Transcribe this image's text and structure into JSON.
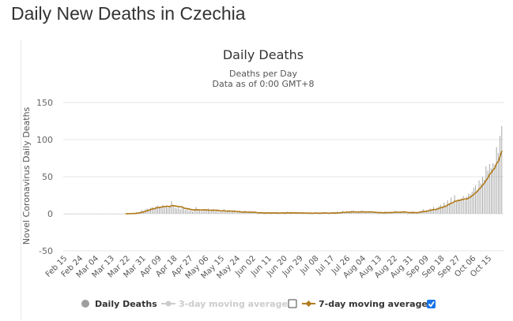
{
  "page": {
    "title": "Daily New Deaths in Czechia"
  },
  "chart_data": {
    "type": "bar",
    "title": "Daily Deaths",
    "subtitle_line1": "Deaths per Day",
    "subtitle_line2": "Data as of 0:00 GMT+8",
    "ylabel": "Novel Coronavirus Daily Deaths",
    "xlabel": "",
    "ylim": [
      -50,
      150
    ],
    "yticks": [
      -50,
      0,
      50,
      100,
      150
    ],
    "x_tick_labels": [
      "Feb 15",
      "Feb 24",
      "Mar 04",
      "Mar 13",
      "Mar 22",
      "Mar 31",
      "Apr 09",
      "Apr 18",
      "Apr 27",
      "May 06",
      "May 15",
      "May 24",
      "Jun 02",
      "Jun 11",
      "Jun 20",
      "Jun 29",
      "Jul 08",
      "Jul 17",
      "Jul 26",
      "Aug 04",
      "Aug 13",
      "Aug 22",
      "Aug 31",
      "Sep 09",
      "Sep 18",
      "Sep 27",
      "Oct 06",
      "Oct 15"
    ],
    "x_tick_interval_days": 9,
    "first_day": "Feb 15",
    "series": [
      {
        "name": "Daily Deaths",
        "kind": "bar",
        "color": "#9e9e9e",
        "values": [
          0,
          0,
          0,
          0,
          0,
          0,
          0,
          0,
          0,
          0,
          0,
          0,
          0,
          0,
          0,
          0,
          0,
          0,
          0,
          0,
          0,
          0,
          0,
          0,
          0,
          0,
          0,
          0,
          0,
          0,
          0,
          0,
          0,
          0,
          0,
          0,
          0,
          1,
          0,
          1,
          0,
          2,
          2,
          3,
          5,
          4,
          6,
          7,
          6,
          8,
          9,
          7,
          10,
          11,
          8,
          9,
          12,
          10,
          11,
          8,
          9,
          17,
          10,
          8,
          7,
          9,
          6,
          8,
          7,
          5,
          6,
          4,
          5,
          3,
          6,
          9,
          4,
          5,
          3,
          6,
          4,
          5,
          7,
          3,
          4,
          6,
          3,
          5,
          2,
          4,
          3,
          6,
          2,
          3,
          5,
          2,
          3,
          4,
          1,
          2,
          3,
          1,
          2,
          4,
          2,
          1,
          3,
          1,
          2,
          1,
          0,
          1,
          2,
          1,
          0,
          2,
          1,
          1,
          0,
          2,
          1,
          1,
          0,
          1,
          2,
          1,
          0,
          3,
          1,
          0,
          2,
          1,
          1,
          0,
          1,
          2,
          0,
          1,
          1,
          0,
          1,
          0,
          1,
          2,
          1,
          0,
          1,
          0,
          2,
          1,
          1,
          0,
          1,
          2,
          1,
          0,
          3,
          2,
          1,
          4,
          2,
          3,
          1,
          2,
          4,
          3,
          2,
          1,
          3,
          2,
          4,
          2,
          3,
          1,
          2,
          3,
          2,
          1,
          2,
          0,
          1,
          2,
          1,
          3,
          2,
          1,
          2,
          1,
          2,
          4,
          3,
          1,
          2,
          3,
          2,
          1,
          0,
          2,
          1,
          3,
          2,
          1,
          2,
          3,
          4,
          6,
          3,
          5,
          4,
          7,
          6,
          9,
          5,
          8,
          10,
          12,
          9,
          15,
          11,
          18,
          14,
          22,
          13,
          25,
          16,
          19,
          17,
          21,
          24,
          18,
          23,
          27,
          26,
          30,
          35,
          38,
          32,
          45,
          41,
          50,
          46,
          64,
          58,
          67,
          61,
          68,
          66,
          90,
          82,
          105,
          118
        ],
        "note": "daily values, one per day starting Feb 15"
      },
      {
        "name": "3-day moving average",
        "kind": "line",
        "color": "#cccccc",
        "visible": false
      },
      {
        "name": "7-day moving average",
        "kind": "line",
        "color": "#b07c1e",
        "visible": true,
        "values": "7-day trailing average of Daily Deaths"
      }
    ],
    "legend": {
      "position": "bottom",
      "items": [
        {
          "label": "Daily Deaths",
          "checkbox": false
        },
        {
          "label": "3-day moving average",
          "checkbox": true,
          "checked": false
        },
        {
          "label": "7-day moving average",
          "checkbox": true,
          "checked": true
        }
      ]
    }
  }
}
